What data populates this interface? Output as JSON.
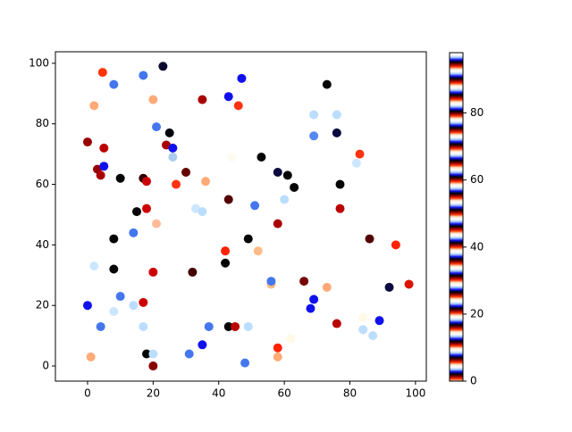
{
  "chart_data": {
    "type": "scatter",
    "x": [
      4.6,
      23,
      8,
      17,
      20,
      2,
      35,
      43,
      47,
      46,
      73,
      69,
      76,
      69,
      76,
      21,
      25,
      0,
      24,
      26,
      5,
      26,
      44,
      53,
      83,
      82,
      3,
      5,
      4,
      10,
      30,
      58,
      61,
      17,
      18,
      27,
      36,
      63,
      77,
      60,
      51,
      43,
      33,
      35,
      18,
      15,
      77,
      58,
      21,
      8,
      14,
      86,
      94,
      42,
      52,
      2,
      8,
      20,
      32,
      42,
      49,
      56,
      56,
      66,
      73,
      98,
      92,
      10,
      69,
      0,
      14,
      8,
      17,
      68,
      89,
      84,
      76,
      4,
      17,
      37,
      43,
      45,
      49,
      84,
      87,
      62,
      35,
      58,
      1,
      18,
      20,
      31,
      58,
      48,
      20
    ],
    "y": [
      97,
      99,
      93,
      96,
      88,
      86,
      88,
      89,
      95,
      86,
      93,
      83,
      83,
      76,
      77,
      79,
      77,
      74,
      73,
      72,
      72,
      69,
      69,
      69,
      70,
      67,
      65,
      66,
      63,
      62,
      64,
      64,
      63,
      62,
      61,
      60,
      61,
      59,
      60,
      55,
      53,
      55,
      52,
      51,
      52,
      51,
      52,
      47,
      47,
      42,
      44,
      42,
      40,
      38,
      38,
      33,
      32,
      31,
      31,
      34,
      42,
      27,
      28,
      28,
      26,
      27,
      26,
      23,
      22,
      20,
      20,
      18,
      21,
      19,
      15,
      16,
      14,
      13,
      13,
      13,
      13,
      13,
      13,
      12,
      10,
      9,
      7,
      6,
      3,
      4,
      4,
      4,
      3,
      1,
      0
    ],
    "colors": [
      "#ff3300",
      "#0a0a30",
      "#4477ee",
      "#4477ee",
      "#ffaa77",
      "#ffaa77",
      "#aa0000",
      "#1010ee",
      "#1010ee",
      "#ff3311",
      "#050505",
      "#bbddff",
      "#bbddff",
      "#5588ee",
      "#0a0a40",
      "#4477ee",
      "#050510",
      "#990000",
      "#aa0000",
      "#1010ee",
      "#bb0000",
      "#aaccee",
      "#fffaf0",
      "#050505",
      "#ff3311",
      "#cce6ff",
      "#990000",
      "#1010ee",
      "#aa0000",
      "#050505",
      "#660000",
      "#0a0a40",
      "#050505",
      "#330000",
      "#cc0000",
      "#ff3311",
      "#ffaa77",
      "#050505",
      "#050505",
      "#bbddff",
      "#4477ee",
      "#550000",
      "#cce6ff",
      "#bbddff",
      "#cc0000",
      "#050505",
      "#bb0000",
      "#aa0000",
      "#ffbb99",
      "#050505",
      "#4477ee",
      "#550000",
      "#ff2200",
      "#ff2200",
      "#ffbb88",
      "#cce6ff",
      "#050505",
      "#cc0000",
      "#440000",
      "#050505",
      "#050505",
      "#ffbb88",
      "#4477ee",
      "#770000",
      "#ffaa77",
      "#dd1100",
      "#0a0a40",
      "#4477ee",
      "#1010ee",
      "#1010ee",
      "#bbddff",
      "#cce6ff",
      "#cc0000",
      "#1010ee",
      "#1010ee",
      "#fffae6",
      "#bb0000",
      "#4477ee",
      "#bbddff",
      "#4477ee",
      "#050505",
      "#bb0000",
      "#bbddff",
      "#bbddff",
      "#bbddff",
      "#fffae6",
      "#1010ee",
      "#ff2200",
      "#ffaa77",
      "#050505",
      "#bbddff",
      "#4477ee",
      "#ffaa77",
      "#4477ee",
      "#880000"
    ],
    "xlim": [
      -9.8,
      103.3
    ],
    "ylim": [
      -5,
      103.8
    ],
    "xticks": [
      0,
      20,
      40,
      60,
      80,
      100
    ],
    "yticks": [
      0,
      20,
      40,
      60,
      80,
      100
    ],
    "clim": [
      0,
      98
    ],
    "cticks": [
      0,
      20,
      40,
      60,
      80
    ]
  }
}
